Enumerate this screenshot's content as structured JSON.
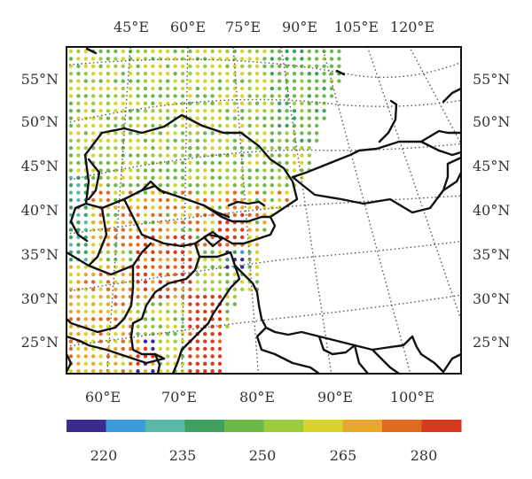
{
  "map": {
    "top_lon_labels": [
      "45°E",
      "60°E",
      "75°E",
      "90°E",
      "105°E",
      "120°E"
    ],
    "bottom_lon_labels": [
      "60°E",
      "70°E",
      "80°E",
      "90°E",
      "100°E"
    ],
    "left_lat_labels": [
      "55°N",
      "50°N",
      "45°N",
      "40°N",
      "35°N",
      "30°N",
      "25°N"
    ],
    "right_lat_labels": [
      "55°N",
      "50°N",
      "45°N",
      "40°N",
      "35°N",
      "30°N",
      "25°N"
    ]
  },
  "colorbar": {
    "colors": [
      "#3a2b8c",
      "#3a9bd8",
      "#5ab8a8",
      "#3fa060",
      "#6cb848",
      "#9ccc3e",
      "#d8d42a",
      "#eaa82a",
      "#e06a22",
      "#d83a1e"
    ],
    "tick_labels": [
      "220",
      "235",
      "250",
      "265",
      "280"
    ]
  }
}
